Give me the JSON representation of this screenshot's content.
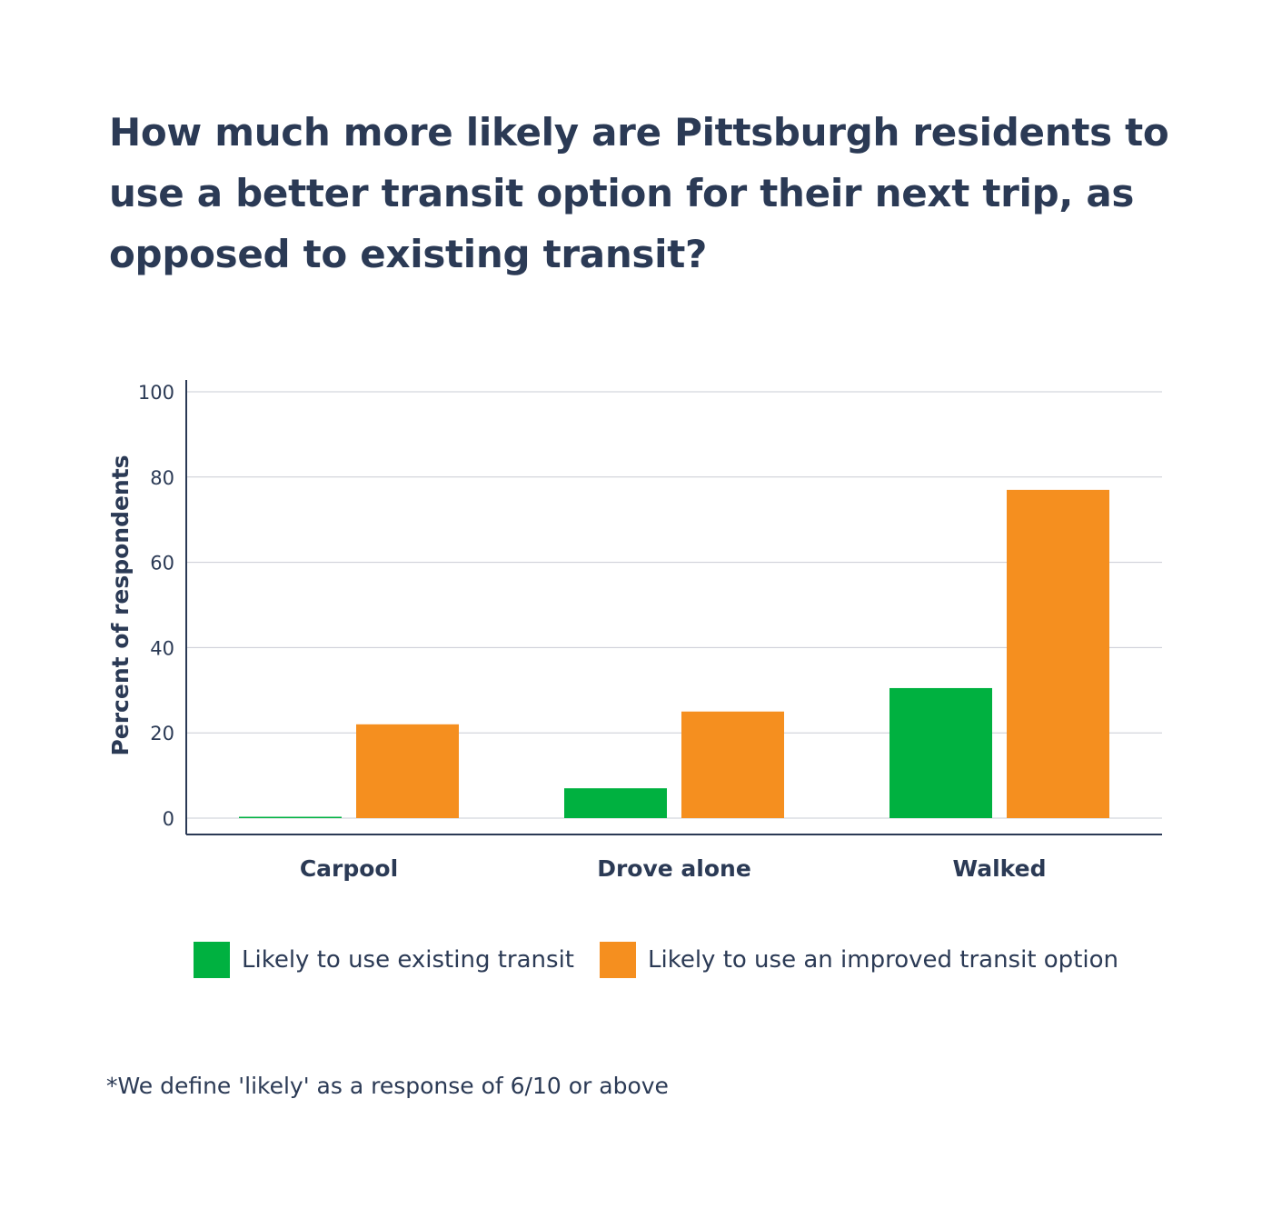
{
  "title": "How much more likely are Pittsburgh residents to use a better transit option for their next trip, as opposed to existing transit?",
  "footnote": "*We define 'likely' as a response of 6/10 or above",
  "colors": {
    "existing": "#00b140",
    "improved": "#f58f1f",
    "text": "#2b3a55",
    "grid": "#c9ccd4",
    "axis": "#2b3a55"
  },
  "chart_data": {
    "type": "bar",
    "categories": [
      "Carpool",
      "Drove alone",
      "Walked"
    ],
    "series": [
      {
        "name": "Likely to use existing transit",
        "values": [
          0.3,
          7,
          30.5
        ]
      },
      {
        "name": "Likely to use an improved transit option",
        "values": [
          22,
          25,
          77
        ]
      }
    ],
    "xlabel": "",
    "ylabel": "Percent of respondents",
    "ylim": [
      0,
      100
    ],
    "yticks": [
      0,
      20,
      40,
      60,
      80,
      100
    ],
    "grid": true,
    "legend_position": "bottom"
  }
}
